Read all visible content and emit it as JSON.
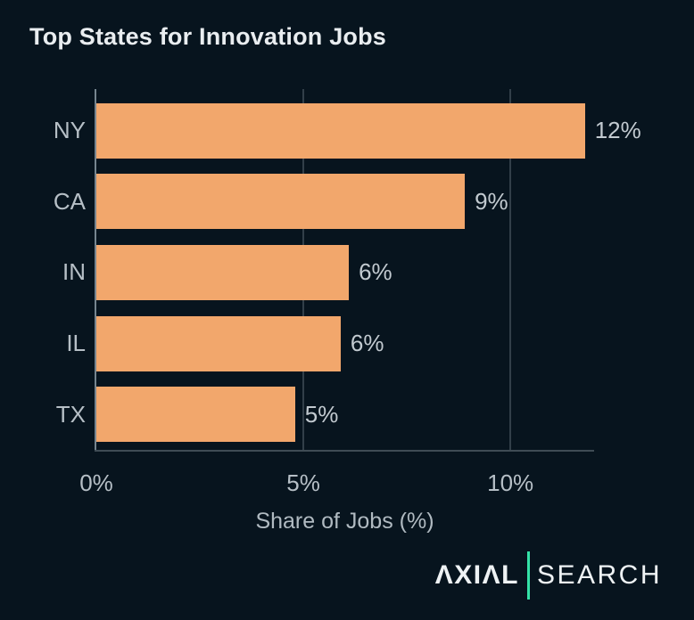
{
  "title": "Top States for Innovation Jobs",
  "chart_data": {
    "type": "bar",
    "orientation": "horizontal",
    "title": "Top States for Innovation Jobs",
    "categories": [
      "NY",
      "CA",
      "IN",
      "IL",
      "TX"
    ],
    "values": [
      11.8,
      8.9,
      6.1,
      5.9,
      4.8
    ],
    "value_labels": [
      "12%",
      "9%",
      "6%",
      "6%",
      "5%"
    ],
    "xlabel": "Share of Jobs (%)",
    "xlim": [
      0,
      12
    ],
    "x_ticks": [
      {
        "value": 0,
        "label": "0%"
      },
      {
        "value": 5,
        "label": "5%"
      },
      {
        "value": 10,
        "label": "10%"
      }
    ],
    "grid": "vertical-gridlines-only",
    "legend": "none"
  },
  "logo": {
    "primary": "ΛXIΛL",
    "secondary": "SEARCH"
  },
  "colors": {
    "background": "#07141e",
    "bar": "#f2a76c",
    "title_text": "#e9edf0",
    "category_label": "#b6bfc6",
    "value_label": "#c2cad0",
    "tick_label": "#b6bfc6",
    "axis_label": "#b0bac1",
    "gridline": "#323f49",
    "y_spine": "#76858f",
    "x_spine": "#3f4c55",
    "logo_divider": "#34e2a7",
    "logo_text": "#eef2f4"
  }
}
